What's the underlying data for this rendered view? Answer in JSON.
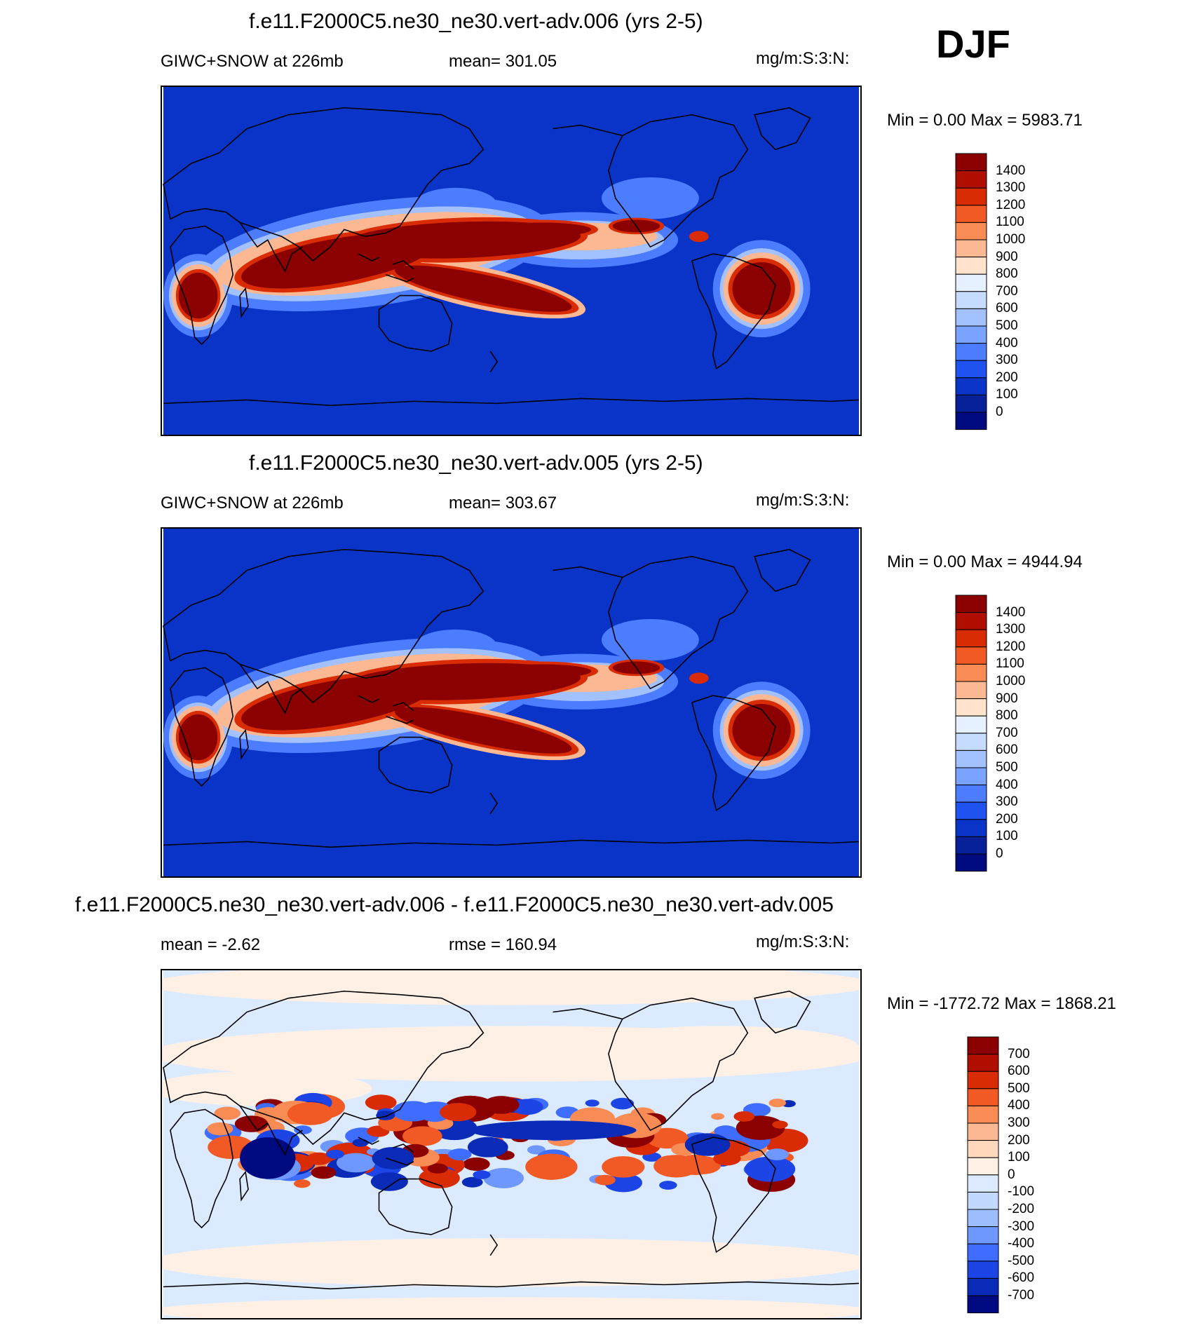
{
  "season": "DJF",
  "panels": [
    {
      "title": "f.e11.F2000C5.ne30_ne30.vert-adv.006 (yrs 2-5)",
      "left_label": "GIWC+SNOW at 226mb",
      "center_label": "mean= 301.05",
      "units": "mg/m:S:3:N:",
      "minmax": "Min =   0.00 Max = 5983.71",
      "colorbar_labels": [
        "1400",
        "1300",
        "1200",
        "1100",
        "1000",
        "900",
        "800",
        "700",
        "600",
        "500",
        "400",
        "300",
        "200",
        "100",
        "0"
      ],
      "colorbar_colors": [
        "#8b0000",
        "#b00f00",
        "#d92c05",
        "#f15a24",
        "#f98b55",
        "#fcb893",
        "#ffe3cc",
        "#e6f1ff",
        "#c6dcff",
        "#a3c1ff",
        "#7aa3ff",
        "#4c7cff",
        "#1f52ef",
        "#0a33c7",
        "#06209a",
        "#000a80"
      ]
    },
    {
      "title": "f.e11.F2000C5.ne30_ne30.vert-adv.005 (yrs 2-5)",
      "left_label": "GIWC+SNOW at 226mb",
      "center_label": "mean= 303.67",
      "units": "mg/m:S:3:N:",
      "minmax": "Min =   0.00 Max = 4944.94",
      "colorbar_labels": [
        "1400",
        "1300",
        "1200",
        "1100",
        "1000",
        "900",
        "800",
        "700",
        "600",
        "500",
        "400",
        "300",
        "200",
        "100",
        "0"
      ],
      "colorbar_colors": [
        "#8b0000",
        "#b00f00",
        "#d92c05",
        "#f15a24",
        "#f98b55",
        "#fcb893",
        "#ffe3cc",
        "#e6f1ff",
        "#c6dcff",
        "#a3c1ff",
        "#7aa3ff",
        "#4c7cff",
        "#1f52ef",
        "#0a33c7",
        "#06209a",
        "#000a80"
      ]
    },
    {
      "title": "f.e11.F2000C5.ne30_ne30.vert-adv.006 - f.e11.F2000C5.ne30_ne30.vert-adv.005",
      "left_label": "mean =  -2.62",
      "center_label": "rmse = 160.94",
      "units": "mg/m:S:3:N:",
      "minmax": "Min = -1772.72 Max = 1868.21",
      "colorbar_labels": [
        "700",
        "600",
        "500",
        "400",
        "300",
        "200",
        "100",
        "0",
        "-100",
        "-200",
        "-300",
        "-400",
        "-500",
        "-600",
        "-700"
      ],
      "colorbar_colors": [
        "#8b0000",
        "#b00f00",
        "#d92c05",
        "#f15a24",
        "#f98b55",
        "#fcb893",
        "#ffd8be",
        "#fff0e6",
        "#dceaff",
        "#c2d8ff",
        "#9dbdff",
        "#6f98ff",
        "#3f6dff",
        "#1d45e6",
        "#0a2bb8",
        "#000a80"
      ]
    }
  ]
}
